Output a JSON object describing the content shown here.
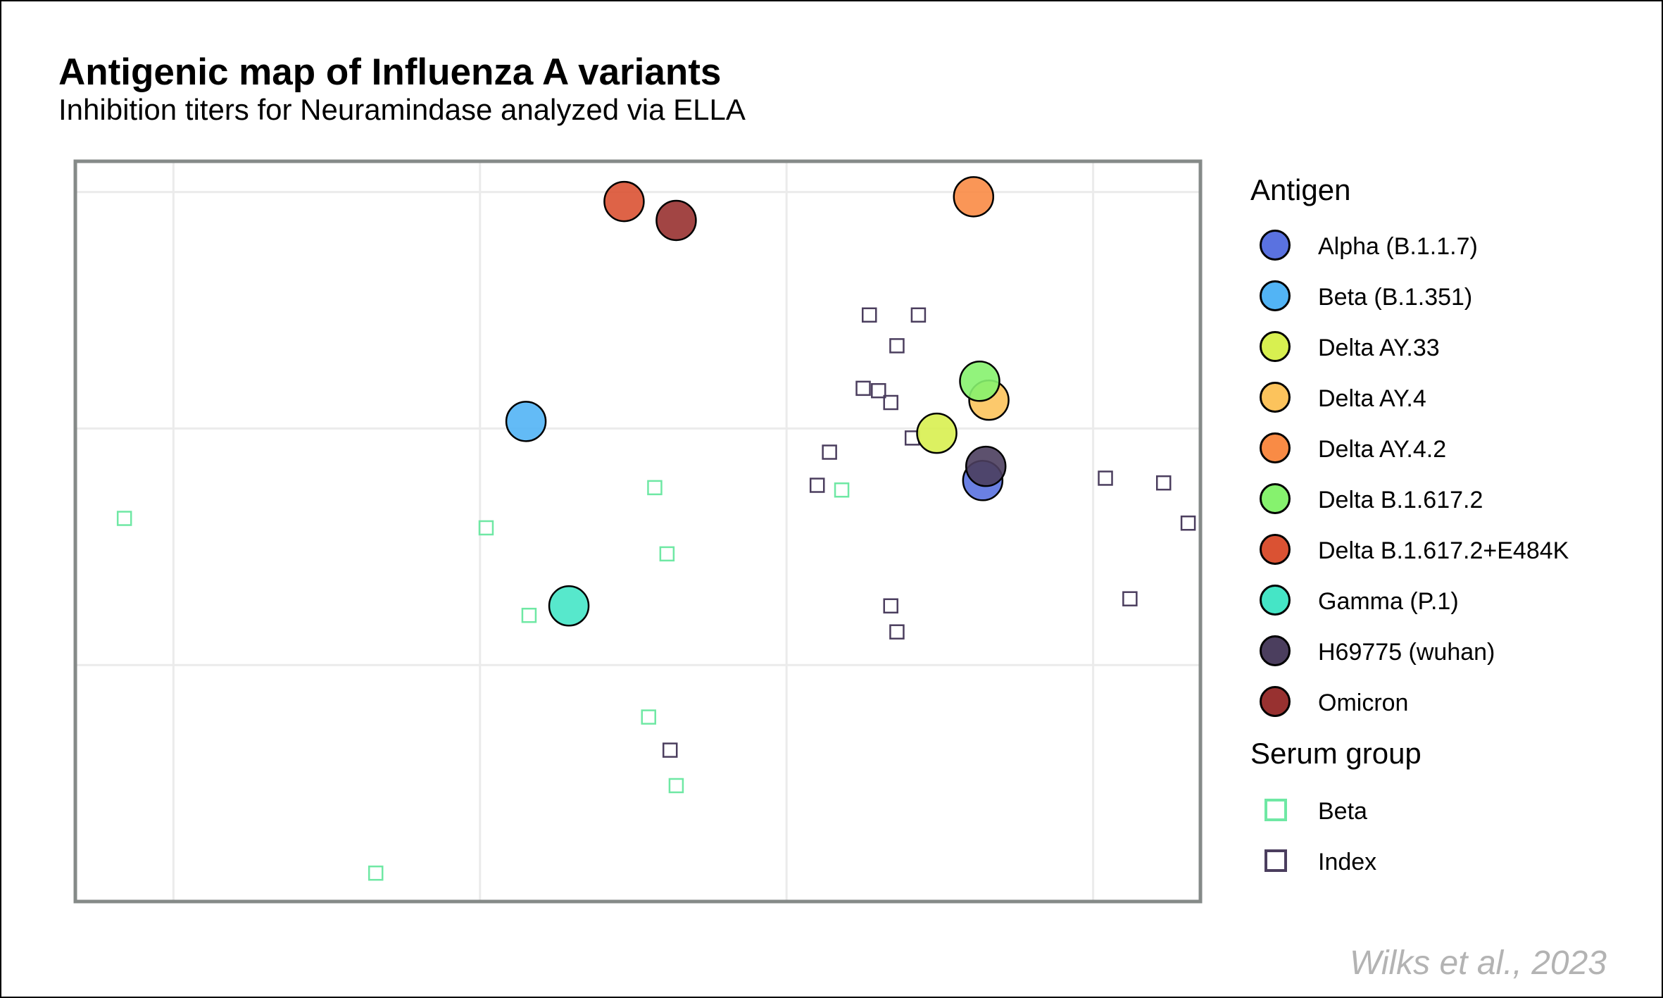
{
  "chart_data": {
    "type": "scatter",
    "title": "Antigenic map of Influenza A variants",
    "subtitle": "Inhibition titers for Neuramindase analyzed via ELLA",
    "xlabel": "",
    "ylabel": "",
    "xlim": [
      -0.32,
      3.35
    ],
    "ylim": [
      -2.0,
      1.13
    ],
    "grid": true,
    "x_gridlines": [
      0,
      1,
      2,
      3
    ],
    "y_gridlines": [
      -1,
      0,
      1
    ],
    "legend_position": "right",
    "antigen_legend_title": "Antigen",
    "serum_legend_title": "Serum group",
    "caption": "Wilks et al., 2023",
    "antigens": [
      {
        "name": "Alpha (B.1.1.7)",
        "color": "#5a72e0",
        "x": 2.64,
        "y": -0.22
      },
      {
        "name": "Beta (B.1.351)",
        "color": "#52b4f5",
        "x": 1.15,
        "y": 0.03
      },
      {
        "name": "Delta AY.33",
        "color": "#d8f050",
        "x": 2.49,
        "y": -0.02
      },
      {
        "name": "Delta AY.4",
        "color": "#fcc35c",
        "x": 2.66,
        "y": 0.12
      },
      {
        "name": "Delta AY.4.2",
        "color": "#f98b45",
        "x": 2.61,
        "y": 0.98
      },
      {
        "name": "Delta B.1.617.2",
        "color": "#86f26e",
        "x": 2.63,
        "y": 0.2
      },
      {
        "name": "Delta B.1.617.2+E484K",
        "color": "#da5233",
        "x": 1.47,
        "y": 0.96
      },
      {
        "name": "Gamma (P.1)",
        "color": "#45e5c6",
        "x": 1.29,
        "y": -0.75
      },
      {
        "name": "H69775 (wuhan)",
        "color": "#4b3e5e",
        "x": 2.65,
        "y": -0.16
      },
      {
        "name": "Omicron",
        "color": "#983130",
        "x": 1.64,
        "y": 0.88
      }
    ],
    "serum_groups": [
      {
        "name": "Beta",
        "color": "#6fe8a4",
        "points": [
          {
            "x": -0.16,
            "y": -0.38
          },
          {
            "x": 1.02,
            "y": -0.42
          },
          {
            "x": 1.16,
            "y": -0.79
          },
          {
            "x": 1.55,
            "y": -1.22
          },
          {
            "x": 1.61,
            "y": -0.53
          },
          {
            "x": 1.57,
            "y": -0.25
          },
          {
            "x": 1.64,
            "y": -1.51
          },
          {
            "x": 0.66,
            "y": -1.88
          },
          {
            "x": 2.18,
            "y": -0.26
          }
        ]
      },
      {
        "name": "Index",
        "color": "#4b3e5e",
        "points": [
          {
            "x": 2.27,
            "y": 0.48
          },
          {
            "x": 2.43,
            "y": 0.48
          },
          {
            "x": 2.36,
            "y": 0.35
          },
          {
            "x": 2.25,
            "y": 0.17
          },
          {
            "x": 2.3,
            "y": 0.16
          },
          {
            "x": 2.34,
            "y": 0.11
          },
          {
            "x": 2.41,
            "y": -0.04
          },
          {
            "x": 2.14,
            "y": -0.1
          },
          {
            "x": 2.1,
            "y": -0.24
          },
          {
            "x": 3.04,
            "y": -0.21
          },
          {
            "x": 3.23,
            "y": -0.23
          },
          {
            "x": 3.31,
            "y": -0.4
          },
          {
            "x": 3.12,
            "y": -0.72
          },
          {
            "x": 2.34,
            "y": -0.75
          },
          {
            "x": 2.36,
            "y": -0.86
          },
          {
            "x": 1.62,
            "y": -1.36
          }
        ]
      }
    ]
  }
}
